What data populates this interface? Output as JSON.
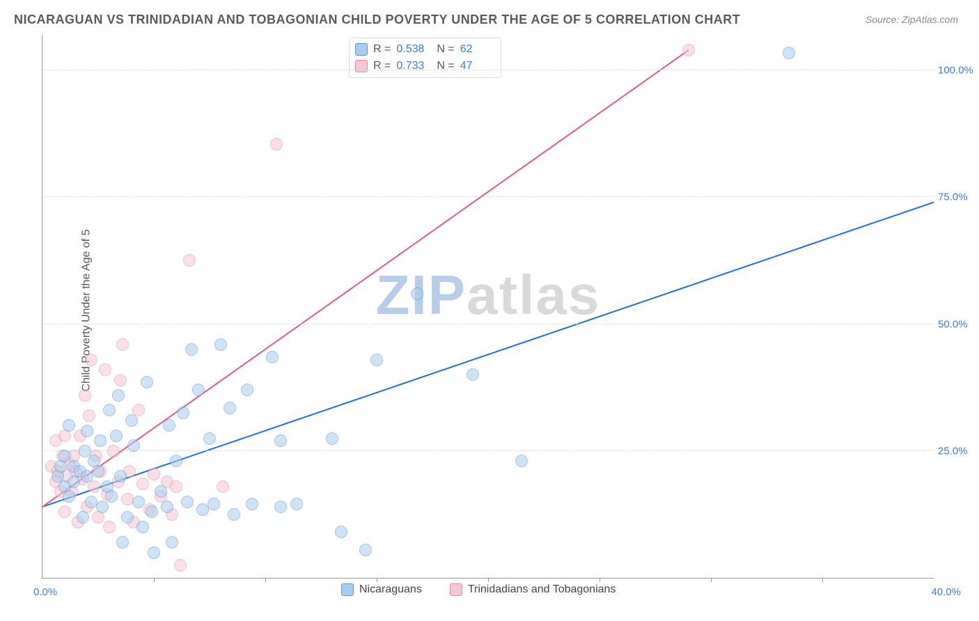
{
  "title": "NICARAGUAN VS TRINIDADIAN AND TOBAGONIAN CHILD POVERTY UNDER THE AGE OF 5 CORRELATION CHART",
  "source": "Source: ZipAtlas.com",
  "ylabel": "Child Poverty Under the Age of 5",
  "watermark_1": "ZIP",
  "watermark_2": "atlas",
  "watermark_color_1": "#b7cde9",
  "watermark_color_2": "#d9d9d9",
  "x_origin_label": "0.0%",
  "x_max_label": "40.0%",
  "chart": {
    "type": "scatter-with-trend",
    "xlim": [
      0,
      40
    ],
    "ylim": [
      0,
      107
    ],
    "x_tick_step": 5,
    "y_ticks": [
      25,
      50,
      75,
      100
    ],
    "y_tick_labels": [
      "25.0%",
      "50.0%",
      "75.0%",
      "100.0%"
    ],
    "grid_color": "#dcdcdc",
    "axis_color": "#999999",
    "background_color": "#ffffff",
    "tick_label_color": "#3b7dd8",
    "tick_label_fontsize": 15,
    "point_radius": 8,
    "point_opacity": 0.55,
    "series": [
      {
        "name": "Nicaraguans",
        "color_fill": "#a9cdf0",
        "color_stroke": "#5a95d6",
        "trend_color": "#1f6fd4",
        "trend_width": 2,
        "trend": {
          "x1": 0,
          "y1": 14,
          "x2": 40,
          "y2": 74
        },
        "R": "0.538",
        "N": "62",
        "points": [
          [
            0.7,
            20
          ],
          [
            0.8,
            22
          ],
          [
            1,
            18
          ],
          [
            1,
            24
          ],
          [
            1.2,
            30
          ],
          [
            1.2,
            16
          ],
          [
            1.4,
            19
          ],
          [
            1.4,
            22
          ],
          [
            1.7,
            21
          ],
          [
            1.8,
            12
          ],
          [
            1.9,
            25
          ],
          [
            2,
            29
          ],
          [
            2,
            20
          ],
          [
            2.2,
            15
          ],
          [
            2.3,
            23
          ],
          [
            2.5,
            21
          ],
          [
            2.6,
            27
          ],
          [
            2.7,
            14
          ],
          [
            2.9,
            18
          ],
          [
            3,
            33
          ],
          [
            3.1,
            16
          ],
          [
            3.3,
            28
          ],
          [
            3.4,
            36
          ],
          [
            3.5,
            20
          ],
          [
            3.6,
            7
          ],
          [
            3.8,
            12
          ],
          [
            4,
            31
          ],
          [
            4.1,
            26
          ],
          [
            4.3,
            15
          ],
          [
            4.5,
            10
          ],
          [
            4.7,
            38.5
          ],
          [
            4.9,
            13
          ],
          [
            5,
            5
          ],
          [
            5.3,
            17
          ],
          [
            5.6,
            14
          ],
          [
            5.7,
            30
          ],
          [
            5.8,
            7
          ],
          [
            6,
            23
          ],
          [
            6.3,
            32.5
          ],
          [
            6.5,
            15
          ],
          [
            6.7,
            45
          ],
          [
            7,
            37
          ],
          [
            7.2,
            13.5
          ],
          [
            7.5,
            27.5
          ],
          [
            7.7,
            14.5
          ],
          [
            8,
            46
          ],
          [
            8.4,
            33.5
          ],
          [
            8.6,
            12.5
          ],
          [
            9.2,
            37
          ],
          [
            9.4,
            14.5
          ],
          [
            10.3,
            43.5
          ],
          [
            10.7,
            14
          ],
          [
            10.7,
            27
          ],
          [
            11.4,
            14.5
          ],
          [
            13,
            27.5
          ],
          [
            13.4,
            9
          ],
          [
            14.5,
            5.5
          ],
          [
            15,
            43
          ],
          [
            16.8,
            56
          ],
          [
            19.3,
            40
          ],
          [
            21.5,
            23
          ],
          [
            33.5,
            103.5
          ]
        ]
      },
      {
        "name": "Trinidadians and Tobagonians",
        "color_fill": "#f6c6d2",
        "color_stroke": "#e28aa3",
        "trend_color": "#e05a88",
        "trend_width": 2,
        "trend": {
          "x1": 0,
          "y1": 14,
          "x2": 29,
          "y2": 104
        },
        "R": "0.733",
        "N": "47",
        "points": [
          [
            0.4,
            22
          ],
          [
            0.6,
            19
          ],
          [
            0.6,
            27
          ],
          [
            0.7,
            21
          ],
          [
            0.8,
            17
          ],
          [
            0.9,
            24
          ],
          [
            1,
            13
          ],
          [
            1,
            28
          ],
          [
            1.1,
            20
          ],
          [
            1.2,
            22.5
          ],
          [
            1.3,
            17
          ],
          [
            1.4,
            24
          ],
          [
            1.5,
            21
          ],
          [
            1.6,
            11
          ],
          [
            1.7,
            28
          ],
          [
            1.8,
            19.5
          ],
          [
            1.9,
            36
          ],
          [
            2,
            14
          ],
          [
            2.1,
            32
          ],
          [
            2.2,
            43
          ],
          [
            2.3,
            18
          ],
          [
            2.4,
            24
          ],
          [
            2.5,
            12
          ],
          [
            2.6,
            21
          ],
          [
            2.8,
            41
          ],
          [
            2.9,
            16.5
          ],
          [
            3,
            10
          ],
          [
            3.2,
            25
          ],
          [
            3.4,
            19
          ],
          [
            3.5,
            39
          ],
          [
            3.6,
            46
          ],
          [
            3.8,
            15.5
          ],
          [
            3.9,
            21
          ],
          [
            4.1,
            11
          ],
          [
            4.3,
            33
          ],
          [
            4.5,
            18.5
          ],
          [
            4.8,
            13.5
          ],
          [
            5,
            20.5
          ],
          [
            5.3,
            16
          ],
          [
            5.6,
            19
          ],
          [
            5.8,
            12.5
          ],
          [
            6,
            18
          ],
          [
            6.2,
            2.5
          ],
          [
            6.6,
            62.5
          ],
          [
            8.1,
            18
          ],
          [
            10.5,
            85.5
          ],
          [
            29,
            104
          ]
        ]
      }
    ]
  },
  "legend_top": {
    "rows": [
      {
        "swatch_fill": "#a9cdf0",
        "swatch_stroke": "#5a95d6",
        "R_label": "R =",
        "R": "0.538",
        "N_label": "N =",
        "N": "62"
      },
      {
        "swatch_fill": "#f6c6d2",
        "swatch_stroke": "#e28aa3",
        "R_label": "R =",
        "R": "0.733",
        "N_label": "N =",
        "N": "47"
      }
    ]
  },
  "legend_bottom": {
    "items": [
      {
        "swatch_fill": "#a9cdf0",
        "swatch_stroke": "#5a95d6",
        "label": "Nicaraguans"
      },
      {
        "swatch_fill": "#f6c6d2",
        "swatch_stroke": "#e28aa3",
        "label": "Trinidadians and Tobagonians"
      }
    ]
  }
}
